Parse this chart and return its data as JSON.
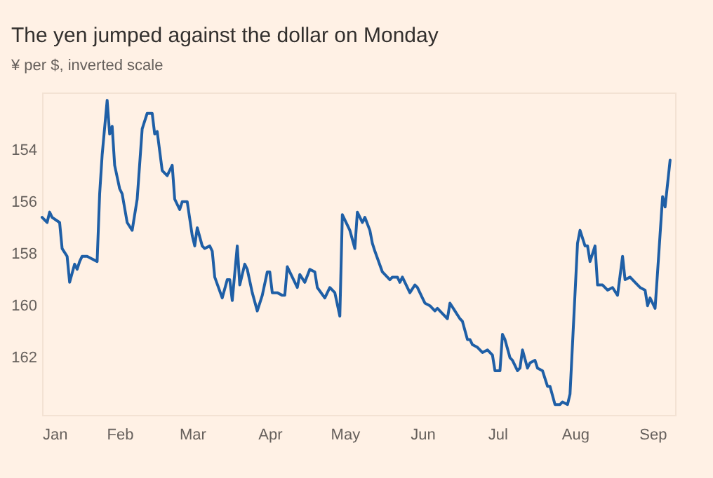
{
  "chart_data": {
    "type": "line",
    "title": "The yen jumped against the dollar on Monday",
    "subtitle": "¥ per $, inverted scale",
    "x": [
      "--01-01",
      "--01-03",
      "--01-04",
      "--01-05",
      "--01-08",
      "--01-09",
      "--01-11",
      "--01-12",
      "--01-14",
      "--01-15",
      "--01-16",
      "--01-17",
      "--01-19",
      "--01-21",
      "--01-23",
      "--01-24",
      "--01-25",
      "--01-27",
      "--01-28",
      "--01-29",
      "--01-30",
      "--02-01",
      "--02-02",
      "--02-04",
      "--02-06",
      "--02-08",
      "--02-10",
      "--02-12",
      "--02-14",
      "--02-15",
      "--02-16",
      "--02-18",
      "--02-20",
      "--02-22",
      "--02-23",
      "--02-25",
      "--02-26",
      "--02-28",
      "--03-01",
      "--03-02",
      "--03-03",
      "--03-05",
      "--03-06",
      "--03-08",
      "--03-09",
      "--03-10",
      "--03-13",
      "--03-15",
      "--03-16",
      "--03-17",
      "--03-19",
      "--03-20",
      "--03-22",
      "--03-23",
      "--03-25",
      "--03-27",
      "--03-29",
      "--03-31",
      "--04-01",
      "--04-02",
      "--04-04",
      "--04-06",
      "--04-07",
      "--04-08",
      "--04-10",
      "--04-12",
      "--04-13",
      "--04-15",
      "--04-17",
      "--04-19",
      "--04-20",
      "--04-23",
      "--04-25",
      "--04-27",
      "--04-29",
      "--04-30",
      "--05-02",
      "--05-03",
      "--05-05",
      "--05-06",
      "--05-08",
      "--05-09",
      "--05-11",
      "--05-12",
      "--05-13",
      "--05-16",
      "--05-18",
      "--05-19",
      "--05-20",
      "--05-22",
      "--05-23",
      "--05-24",
      "--05-27",
      "--05-29",
      "--05-30",
      "--06-01",
      "--06-02",
      "--06-04",
      "--06-06",
      "--06-07",
      "--06-09",
      "--06-11",
      "--06-12",
      "--06-14",
      "--06-16",
      "--06-17",
      "--06-19",
      "--06-20",
      "--06-21",
      "--06-23",
      "--06-25",
      "--06-27",
      "--06-29",
      "--06-30",
      "--07-02",
      "--07-03",
      "--07-04",
      "--07-06",
      "--07-07",
      "--07-09",
      "--07-10",
      "--07-11",
      "--07-13",
      "--07-14",
      "--07-16",
      "--07-17",
      "--07-19",
      "--07-21",
      "--07-22",
      "--07-24",
      "--07-26",
      "--07-27",
      "--07-29",
      "--07-30",
      "--08-02",
      "--08-03",
      "--08-05",
      "--08-06",
      "--08-07",
      "--08-09",
      "--08-10",
      "--08-12",
      "--08-14",
      "--08-16",
      "--08-18",
      "--08-20",
      "--08-21",
      "--08-23",
      "--08-25",
      "--08-27",
      "--08-29",
      "--08-30",
      "--08-31",
      "--09-02",
      "--09-03",
      "--09-05",
      "--09-06",
      "--09-08"
    ],
    "series": [
      {
        "color": "#1f5fa6",
        "values": [
          156.6,
          156.8,
          156.4,
          156.6,
          156.8,
          157.8,
          158.1,
          159.1,
          158.4,
          158.6,
          158.3,
          158.1,
          158.1,
          158.2,
          158.3,
          155.7,
          154.2,
          152.1,
          153.4,
          153.1,
          154.6,
          155.5,
          155.7,
          156.8,
          157.1,
          155.9,
          153.2,
          152.6,
          152.6,
          153.4,
          153.3,
          154.8,
          155.0,
          154.6,
          155.9,
          156.3,
          156.0,
          156.0,
          157.3,
          157.7,
          157.0,
          157.7,
          157.8,
          157.7,
          157.9,
          158.9,
          159.7,
          159.0,
          159.0,
          159.8,
          157.7,
          159.2,
          158.4,
          158.6,
          159.5,
          160.2,
          159.6,
          158.7,
          158.7,
          159.5,
          159.5,
          159.6,
          159.6,
          158.5,
          158.9,
          159.3,
          158.8,
          159.1,
          158.6,
          158.7,
          159.3,
          159.7,
          159.3,
          159.5,
          160.4,
          156.5,
          156.9,
          157.1,
          157.8,
          156.4,
          156.8,
          156.6,
          157.1,
          157.6,
          157.9,
          158.7,
          158.9,
          159.0,
          158.9,
          158.9,
          159.1,
          158.9,
          159.5,
          159.2,
          159.3,
          159.7,
          159.9,
          160.0,
          160.2,
          160.1,
          160.3,
          160.5,
          159.9,
          160.2,
          160.5,
          160.6,
          161.3,
          161.3,
          161.5,
          161.6,
          161.8,
          161.7,
          161.9,
          162.5,
          162.5,
          161.1,
          161.3,
          162.0,
          162.1,
          162.5,
          162.4,
          161.7,
          162.4,
          162.2,
          162.1,
          162.4,
          162.5,
          163.1,
          163.1,
          163.8,
          163.8,
          163.7,
          163.8,
          163.4,
          157.6,
          157.1,
          157.7,
          157.7,
          158.3,
          157.7,
          159.2,
          159.2,
          159.4,
          159.3,
          159.6,
          158.1,
          159.0,
          158.9,
          159.1,
          159.3,
          159.4,
          160.0,
          159.7,
          160.1,
          158.7,
          155.8,
          156.2,
          154.4
        ]
      }
    ],
    "xticks": [
      {
        "value": "--01-01",
        "label": "Jan"
      },
      {
        "value": "--02-01",
        "label": "Feb"
      },
      {
        "value": "--03-01",
        "label": "Mar"
      },
      {
        "value": "--04-01",
        "label": "Apr"
      },
      {
        "value": "--05-01",
        "label": "May"
      },
      {
        "value": "--06-01",
        "label": "Jun"
      },
      {
        "value": "--07-01",
        "label": "Jul"
      },
      {
        "value": "--08-01",
        "label": "Aug"
      },
      {
        "value": "--09-01",
        "label": "Sep"
      }
    ],
    "xlim": [
      "--01-01",
      "--09-10"
    ],
    "ylim": [
      164.2,
      151.8
    ],
    "yticks": [
      154,
      156,
      158,
      160,
      162
    ],
    "grid": false,
    "legend": false,
    "marker": "none",
    "line_style": "solid"
  }
}
